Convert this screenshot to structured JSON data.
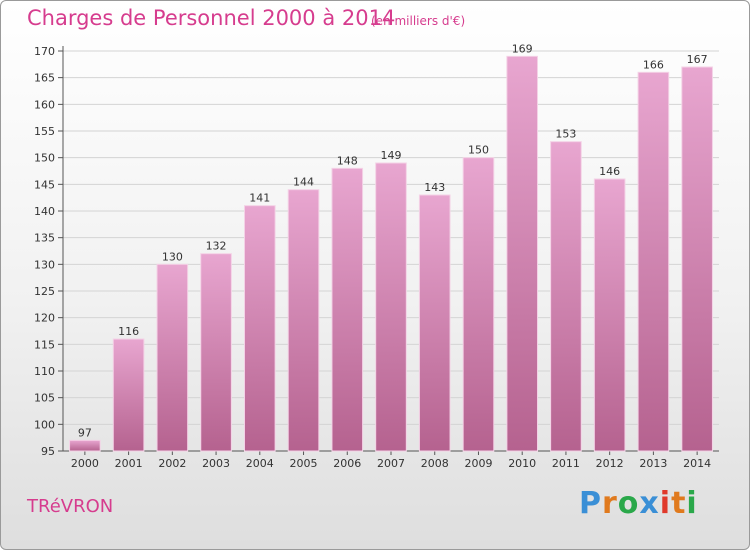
{
  "title": "Charges de Personnel 2000 à 2014",
  "unit_label": "(en milliers d'€)",
  "commune": "TRéVRON",
  "logo": {
    "text": "Proxiti",
    "colors": [
      "#3a8fd6",
      "#e07a1e",
      "#2aa84a",
      "#3a8fd6",
      "#e0392b",
      "#e07a1e",
      "#2aa84a"
    ]
  },
  "colors": {
    "bar_top": "#e8a6d0",
    "bar_bottom": "#b5628f",
    "title": "#d63c8e",
    "grid": "#d4d4d4"
  },
  "chart_data": {
    "type": "bar",
    "categories": [
      "2000",
      "2001",
      "2002",
      "2003",
      "2004",
      "2005",
      "2006",
      "2007",
      "2008",
      "2009",
      "2010",
      "2011",
      "2012",
      "2013",
      "2014"
    ],
    "values": [
      97,
      116,
      130,
      132,
      141,
      144,
      148,
      149,
      143,
      150,
      169,
      153,
      146,
      166,
      167
    ],
    "ylim": [
      95,
      170
    ],
    "yticks": [
      95,
      100,
      105,
      110,
      115,
      120,
      125,
      130,
      135,
      140,
      145,
      150,
      155,
      160,
      165,
      170
    ],
    "grid": true,
    "data_labels": true
  }
}
